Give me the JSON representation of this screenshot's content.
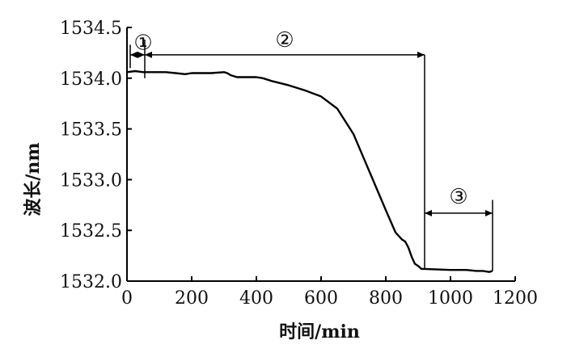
{
  "chart_data": {
    "type": "line",
    "xlabel": "时间/min",
    "ylabel": "波长/nm",
    "xlim": [
      0,
      1200
    ],
    "ylim": [
      1532.0,
      1534.5
    ],
    "xticks": [
      0,
      200,
      400,
      600,
      800,
      1000,
      1200
    ],
    "yticks": [
      1532.0,
      1532.5,
      1533.0,
      1533.5,
      1534.0,
      1534.5
    ],
    "xtick_labels": [
      "0",
      "200",
      "400",
      "600",
      "800",
      "1000",
      "1200"
    ],
    "ytick_labels": [
      "1532.0",
      "1532.5",
      "1533.0",
      "1533.5",
      "1534.0",
      "1534.5"
    ],
    "grid": false,
    "series": [
      {
        "x": [
          0,
          25,
          50,
          80,
          120,
          150,
          180,
          200,
          230,
          260,
          300,
          310,
          320,
          340,
          360,
          400,
          420,
          450,
          500,
          550,
          600,
          650,
          700,
          720,
          760,
          800,
          830,
          850,
          855,
          860,
          870,
          880,
          890,
          900,
          910,
          920,
          1000,
          1050,
          1080,
          1100,
          1120,
          1130
        ],
        "y": [
          1534.06,
          1534.07,
          1534.06,
          1534.06,
          1534.06,
          1534.05,
          1534.04,
          1534.05,
          1534.05,
          1534.05,
          1534.06,
          1534.05,
          1534.03,
          1534.01,
          1534.01,
          1534.01,
          1534.0,
          1533.97,
          1533.93,
          1533.88,
          1533.82,
          1533.7,
          1533.45,
          1533.3,
          1533.0,
          1532.7,
          1532.48,
          1532.41,
          1532.4,
          1532.39,
          1532.33,
          1532.24,
          1532.17,
          1532.15,
          1532.12,
          1532.12,
          1532.11,
          1532.11,
          1532.1,
          1532.1,
          1532.09,
          1532.1
        ]
      }
    ],
    "stages": [
      {
        "label": "①",
        "x_start": 0,
        "x_end": 55,
        "y": 1534.23
      },
      {
        "label": "②",
        "x_start": 55,
        "x_end": 920,
        "y": 1534.23
      },
      {
        "label": "③",
        "x_start": 920,
        "x_end": 1130,
        "y": 1532.67
      }
    ],
    "boundaries": [
      {
        "x": 55,
        "y_top": 1534.38,
        "y_bottom": 1534.0
      },
      {
        "x": 920,
        "y_top": 1534.23,
        "y_bottom": 1532.12
      },
      {
        "x": 1130,
        "y_top": 1532.8,
        "y_bottom": 1532.1
      }
    ]
  }
}
